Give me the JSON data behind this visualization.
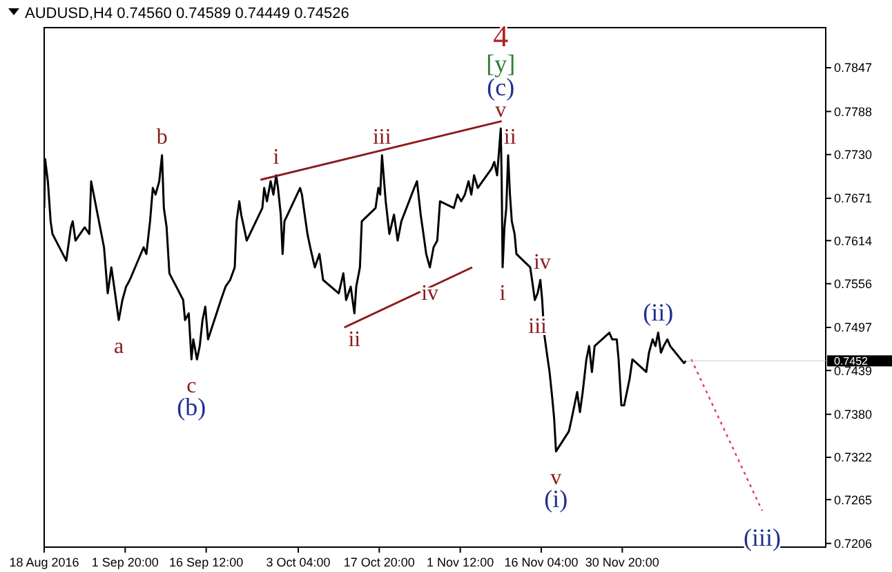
{
  "chart_data": {
    "type": "line",
    "title": "AUDUSD,H4  0.74560 0.74589 0.74449 0.74526",
    "xlim": [
      "2016-08-18T04:00",
      "2017-01-06T16:00"
    ],
    "ylim": [
      0.7201,
      0.7901
    ],
    "xticks": [
      {
        "value": "2016-08-18T04:00",
        "label": "18 Aug 2016"
      },
      {
        "value": "2016-09-01T20:00",
        "label": "1 Sep 20:00"
      },
      {
        "value": "2016-09-16T12:00",
        "label": "16 Sep 12:00"
      },
      {
        "value": "2016-10-03T04:00",
        "label": "3 Oct 04:00"
      },
      {
        "value": "2016-10-17T20:00",
        "label": "17 Oct 20:00"
      },
      {
        "value": "2016-11-01T12:00",
        "label": "1 Nov 12:00"
      },
      {
        "value": "2016-11-16T04:00",
        "label": "16 Nov 04:00"
      },
      {
        "value": "2016-11-30T20:00",
        "label": "30 Nov 20:00"
      }
    ],
    "yticks": [
      0.7206,
      0.7265,
      0.7322,
      {
        "value": 0.738,
        "label": "0.7380"
      },
      0.7439,
      0.7497,
      0.7556,
      0.7614,
      0.7671,
      {
        "value": 0.773,
        "label": "0.7730"
      },
      0.7788,
      0.7847
    ],
    "series": [
      {
        "color": "#000000",
        "line_style": "solid",
        "x": [
          "2016-08-18T04:00",
          "2016-08-18T08:00",
          "2016-08-18T20:00",
          "2016-08-19T08:00",
          "2016-08-19T16:00",
          "2016-08-22T04:00",
          "2016-08-23T00:00",
          "2016-08-23T08:00",
          "2016-08-23T20:00",
          "2016-08-24T16:00",
          "2016-08-25T12:00",
          "2016-08-26T08:00",
          "2016-08-26T16:00",
          "2016-08-29T00:00",
          "2016-08-29T16:00",
          "2016-08-30T08:00",
          "2016-08-30T20:00",
          "2016-08-31T08:00",
          "2016-08-31T16:00",
          "2016-09-01T08:00",
          "2016-09-02T00:00",
          "2016-09-02T16:00",
          "2016-09-05T04:00",
          "2016-09-05T16:00",
          "2016-09-06T08:00",
          "2016-09-06T20:00",
          "2016-09-07T08:00",
          "2016-09-08T00:00",
          "2016-09-08T12:00",
          "2016-09-08T20:00",
          "2016-09-09T08:00",
          "2016-09-09T20:00",
          "2016-09-12T08:00",
          "2016-09-12T16:00",
          "2016-09-13T08:00",
          "2016-09-13T20:00",
          "2016-09-14T04:00",
          "2016-09-14T20:00",
          "2016-09-15T08:00",
          "2016-09-15T20:00",
          "2016-09-16T08:00",
          "2016-09-16T20:00",
          "2016-09-19T04:00",
          "2016-09-20T00:00",
          "2016-09-20T20:00",
          "2016-09-21T16:00",
          "2016-09-22T00:00",
          "2016-09-22T12:00",
          "2016-09-22T20:00",
          "2016-09-23T08:00",
          "2016-09-23T20:00",
          "2016-09-26T16:00",
          "2016-09-27T00:00",
          "2016-09-27T12:00",
          "2016-09-28T04:00",
          "2016-09-28T16:00",
          "2016-09-29T04:00",
          "2016-09-29T12:00",
          "2016-09-30T00:00",
          "2016-09-30T08:00",
          "2016-09-30T16:00",
          "2016-10-03T12:00",
          "2016-10-03T20:00",
          "2016-10-04T08:00",
          "2016-10-04T20:00",
          "2016-10-05T08:00",
          "2016-10-06T04:00",
          "2016-10-07T00:00",
          "2016-10-07T16:00",
          "2016-10-10T12:00",
          "2016-10-11T08:00",
          "2016-10-11T20:00",
          "2016-10-12T16:00",
          "2016-10-13T08:00",
          "2016-10-13T16:00",
          "2016-10-14T08:00",
          "2016-10-14T16:00",
          "2016-10-17T04:00",
          "2016-10-17T16:00",
          "2016-10-18T00:00",
          "2016-10-18T08:00",
          "2016-10-19T00:00",
          "2016-10-19T16:00",
          "2016-10-20T12:00",
          "2016-10-21T04:00",
          "2016-10-21T20:00",
          "2016-10-24T04:00",
          "2016-10-24T16:00",
          "2016-10-25T08:00",
          "2016-10-26T00:00",
          "2016-10-26T08:00",
          "2016-10-27T00:00",
          "2016-10-27T16:00",
          "2016-10-28T08:00",
          "2016-10-28T20:00",
          "2016-10-31T08:00",
          "2016-11-01T00:00",
          "2016-11-01T16:00",
          "2016-11-02T08:00",
          "2016-11-03T00:00",
          "2016-11-03T12:00",
          "2016-11-04T00:00",
          "2016-11-04T16:00",
          "2016-11-07T04:00",
          "2016-11-07T16:00",
          "2016-11-08T04:00",
          "2016-11-08T20:00",
          "2016-11-09T00:00",
          "2016-11-09T04:00",
          "2016-11-09T12:00",
          "2016-11-09T20:00",
          "2016-11-10T04:00",
          "2016-11-10T12:00",
          "2016-11-10T20:00",
          "2016-11-11T08:00",
          "2016-11-11T16:00",
          "2016-11-14T04:00",
          "2016-11-14T16:00",
          "2016-11-15T00:00",
          "2016-11-15T12:00",
          "2016-11-16T00:00",
          "2016-11-16T08:00",
          "2016-11-16T16:00",
          "2016-11-17T04:00",
          "2016-11-17T16:00",
          "2016-11-18T04:00",
          "2016-11-18T12:00",
          "2016-11-18T20:00",
          "2016-11-21T04:00",
          "2016-11-21T16:00",
          "2016-11-22T04:00",
          "2016-11-22T16:00",
          "2016-11-23T04:00",
          "2016-11-23T16:00",
          "2016-11-24T08:00",
          "2016-11-24T20:00",
          "2016-11-25T08:00",
          "2016-11-25T20:00",
          "2016-11-28T12:00",
          "2016-11-29T00:00",
          "2016-11-29T20:00",
          "2016-11-30T04:00",
          "2016-11-30T16:00",
          "2016-12-01T04:00",
          "2016-12-01T16:00",
          "2016-12-02T04:00",
          "2016-12-02T16:00",
          "2016-12-05T04:00",
          "2016-12-05T16:00",
          "2016-12-06T08:00",
          "2016-12-06T20:00",
          "2016-12-07T08:00",
          "2016-12-07T20:00",
          "2016-12-08T08:00",
          "2016-12-09T00:00",
          "2016-12-09T12:00",
          "2016-12-12T00:00",
          "2016-12-12T08:00"
        ],
        "values": [
          0.7658,
          0.7724,
          0.7694,
          0.764,
          0.7623,
          0.7587,
          0.7632,
          0.764,
          0.7614,
          0.7623,
          0.7632,
          0.7623,
          0.7694,
          0.7605,
          0.7543,
          0.7578,
          0.7552,
          0.7525,
          0.7507,
          0.7534,
          0.7552,
          0.7561,
          0.7605,
          0.7596,
          0.764,
          0.7685,
          0.7676,
          0.7694,
          0.7729,
          0.7658,
          0.7632,
          0.757,
          0.7534,
          0.7507,
          0.7516,
          0.7454,
          0.7481,
          0.7454,
          0.7472,
          0.7507,
          0.7525,
          0.7481,
          0.7534,
          0.7552,
          0.7561,
          0.7578,
          0.764,
          0.7667,
          0.7649,
          0.7632,
          0.7614,
          0.7658,
          0.7685,
          0.7667,
          0.7694,
          0.7676,
          0.7702,
          0.7685,
          0.7649,
          0.7596,
          0.764,
          0.7685,
          0.7676,
          0.7649,
          0.7623,
          0.7605,
          0.7578,
          0.7596,
          0.7561,
          0.7543,
          0.757,
          0.7534,
          0.7552,
          0.7516,
          0.7552,
          0.7578,
          0.764,
          0.7658,
          0.7685,
          0.7676,
          0.7729,
          0.7667,
          0.7623,
          0.7649,
          0.7614,
          0.764,
          0.7685,
          0.7694,
          0.7649,
          0.7614,
          0.7596,
          0.7578,
          0.7605,
          0.7614,
          0.7667,
          0.7658,
          0.7676,
          0.7667,
          0.7676,
          0.7694,
          0.7676,
          0.7702,
          0.7685,
          0.7711,
          0.772,
          0.7702,
          0.7765,
          0.7694,
          0.7578,
          0.7632,
          0.7658,
          0.7729,
          0.7676,
          0.764,
          0.7623,
          0.7596,
          0.7578,
          0.7552,
          0.7534,
          0.7543,
          0.7561,
          0.7534,
          0.749,
          0.7463,
          0.7437,
          0.7401,
          0.7374,
          0.733,
          0.7357,
          0.7374,
          0.7392,
          0.741,
          0.7383,
          0.741,
          0.7454,
          0.7472,
          0.7437,
          0.7472,
          0.749,
          0.7481,
          0.7481,
          0.7454,
          0.7392,
          0.7392,
          0.741,
          0.7428,
          0.7454,
          0.7437,
          0.7463,
          0.7481,
          0.7472,
          0.749,
          0.7463,
          0.7472,
          0.7481,
          0.7472,
          0.7449,
          0.7452
        ]
      },
      {
        "color": "#8b1a1a",
        "line_style": "solid",
        "x": [
          "2016-09-26T08:00",
          "2016-11-09T00:00"
        ],
        "values": [
          0.7696,
          0.7775
        ]
      },
      {
        "color": "#8b1a1a",
        "line_style": "solid",
        "x": [
          "2016-10-11T12:00",
          "2016-11-03T16:00"
        ],
        "values": [
          0.7497,
          0.7578
        ]
      },
      {
        "color": "#e8336b",
        "line_style": "dotted",
        "x": [
          "2016-12-13T08:00",
          "2016-12-26T04:00"
        ],
        "values": [
          0.7454,
          0.725
        ]
      }
    ],
    "annotations": [
      {
        "text": "a",
        "x": "2016-08-31T16:00",
        "y": 0.7507
      },
      {
        "text": "b",
        "x": "2016-09-08T12:00",
        "y": 0.7729
      },
      {
        "text": "c",
        "x": "2016-09-13T20:00",
        "y": 0.7454
      },
      "(b)",
      {
        "text": "i",
        "x": "2016-09-29T04:00",
        "y": 0.7702
      },
      {
        "text": "ii",
        "x": "2016-10-13T08:00",
        "y": 0.7516
      },
      {
        "text": "iii",
        "x": "2016-10-18T08:00",
        "y": 0.7729
      },
      {
        "text": "iv",
        "x": "2016-10-27T00:00",
        "y": 0.7578
      },
      {
        "text": "v",
        "x": "2016-11-08T20:00",
        "y": 0.7765
      },
      "(c)",
      "[y]",
      "4",
      {
        "text": "ii",
        "x": "2016-11-10T12:00",
        "y": 0.7729
      },
      {
        "text": "i",
        "x": "2016-11-09T04:00",
        "y": 0.7578
      },
      {
        "text": "iii",
        "x": "2016-11-15T12:00",
        "y": 0.7534
      },
      {
        "text": "iv",
        "x": "2016-11-16T08:00",
        "y": 0.7561
      },
      {
        "text": "v",
        "x": "2016-11-18T20:00",
        "y": 0.733
      },
      "(i)",
      {
        "text": "(ii)",
        "x": "2016-12-07T08:00",
        "y": 0.749
      },
      {
        "text": "(iii)",
        "x": "2016-12-26T04:00",
        "y": 0.725
      },
      {
        "text": "0.7452",
        "x": "2016-12-12T08:00",
        "y": 0.7452
      }
    ]
  }
}
